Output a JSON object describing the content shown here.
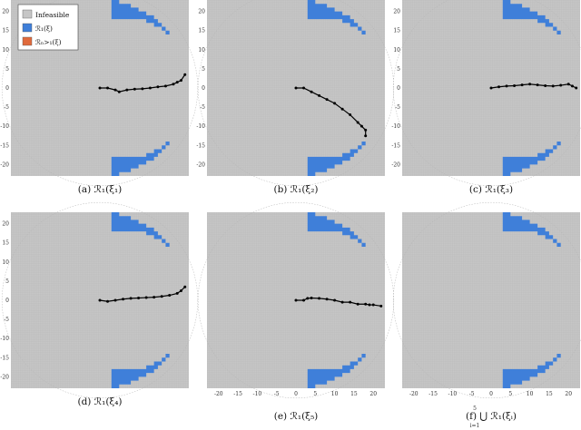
{
  "figure": {
    "legend": {
      "entries": [
        {
          "label": "Infeasible",
          "color": "#c6c6c6"
        },
        {
          "label": "ℛ₁(ξ)",
          "color": "#3f7fd9"
        },
        {
          "label": "ℛₙ>₁(ξ)",
          "color": "#e06a3c"
        }
      ]
    },
    "colors": {
      "infeasible": "#c6c6c6",
      "region_1": "#3f7fd9",
      "region_n_gt_1": "#e06a3c",
      "trajectory": "#000000"
    }
  },
  "chart_data": [
    {
      "type": "scatter",
      "caption": "(a) ℛ₁(ξ₁)",
      "xlim": [
        -23,
        23
      ],
      "ylim": [
        -23,
        23
      ],
      "xticks": [],
      "yticks": [
        20,
        15,
        10,
        5,
        0,
        -5,
        -10,
        -15,
        -20
      ],
      "trajectory": {
        "x": [
          0,
          2,
          4,
          5,
          7,
          9,
          11,
          13,
          15,
          17,
          19,
          20,
          21,
          22
        ],
        "y": [
          0,
          0,
          -0.5,
          -1,
          -0.5,
          -0.3,
          -0.2,
          0,
          0.3,
          0.5,
          1,
          1.5,
          2,
          3.5
        ]
      }
    },
    {
      "type": "scatter",
      "caption": "(b) ℛ₁(ξ₂)",
      "xlim": [
        -23,
        23
      ],
      "ylim": [
        -23,
        23
      ],
      "xticks": [],
      "yticks": [
        20,
        15,
        10,
        5,
        0,
        -5,
        -10,
        -15,
        -20
      ],
      "trajectory": {
        "x": [
          0,
          2,
          4,
          6,
          8,
          10,
          12,
          14,
          16,
          17,
          18,
          18
        ],
        "y": [
          0,
          0,
          -1,
          -2,
          -3,
          -4,
          -5.5,
          -7,
          -9,
          -10,
          -11,
          -12.5
        ]
      }
    },
    {
      "type": "scatter",
      "caption": "(c) ℛ₁(ξ₃)",
      "xlim": [
        -23,
        23
      ],
      "ylim": [
        -23,
        23
      ],
      "xticks": [],
      "yticks": [
        20,
        15,
        10,
        5,
        0,
        -5,
        -10,
        -15,
        -20
      ],
      "trajectory": {
        "x": [
          0,
          2,
          4,
          6,
          8,
          10,
          12,
          14,
          16,
          18,
          20,
          21,
          22
        ],
        "y": [
          0,
          0.3,
          0.5,
          0.6,
          0.8,
          1,
          0.8,
          0.6,
          0.5,
          0.7,
          1,
          0.5,
          0
        ]
      }
    },
    {
      "type": "scatter",
      "caption": "(d) ℛ₁(ξ₄)",
      "xlim": [
        -23,
        23
      ],
      "ylim": [
        -23,
        23
      ],
      "xticks": [],
      "yticks": [
        20,
        15,
        10,
        5,
        0,
        -5,
        -10,
        -15,
        -20
      ],
      "trajectory": {
        "x": [
          0,
          2,
          4,
          6,
          8,
          10,
          12,
          14,
          16,
          18,
          20,
          21,
          22
        ],
        "y": [
          0,
          -0.3,
          0,
          0.3,
          0.5,
          0.6,
          0.7,
          0.8,
          1,
          1.3,
          1.8,
          2.5,
          3.5
        ]
      }
    },
    {
      "type": "scatter",
      "caption": "(e) ℛ₁(ξ₅)",
      "xlim": [
        -23,
        23
      ],
      "ylim": [
        -23,
        23
      ],
      "xticks": [
        -20,
        -15,
        -10,
        -5,
        0,
        5,
        10,
        15,
        20
      ],
      "yticks": [],
      "trajectory": {
        "x": [
          0,
          2,
          3,
          4,
          6,
          8,
          10,
          12,
          14,
          16,
          18,
          19,
          20,
          22
        ],
        "y": [
          0,
          0,
          0.5,
          0.6,
          0.5,
          0.3,
          0,
          -0.5,
          -0.5,
          -1,
          -1,
          -1.2,
          -1.2,
          -1.5
        ]
      }
    },
    {
      "type": "scatter",
      "caption": "(f) ⋃ ℛ₁(ξᵢ)",
      "caption_upper": "5",
      "caption_lower": "i=1",
      "xlim": [
        -23,
        23
      ],
      "ylim": [
        -23,
        23
      ],
      "xticks": [
        -20,
        -15,
        -10,
        -5,
        0,
        5,
        10,
        15,
        20
      ],
      "yticks": [],
      "trajectory": null
    }
  ]
}
